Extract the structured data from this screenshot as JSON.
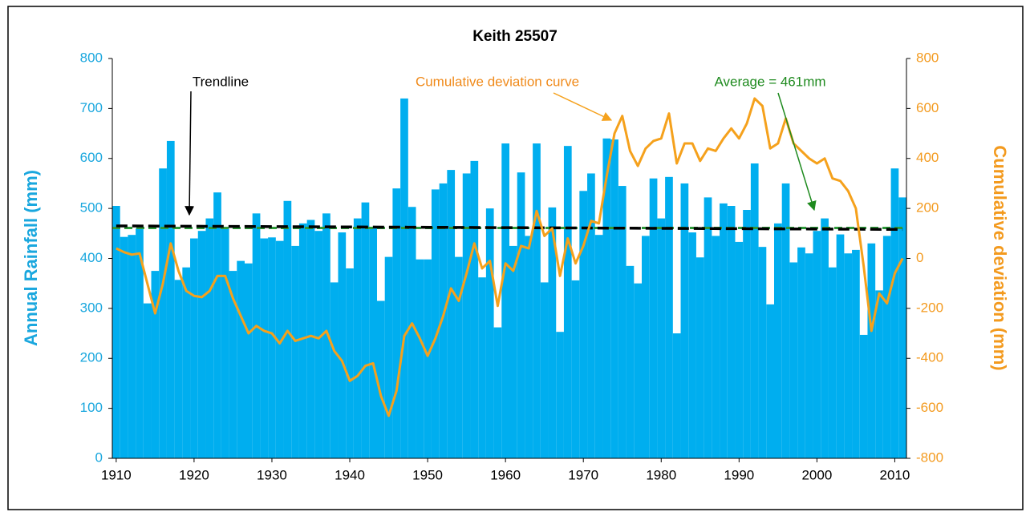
{
  "chart_data": {
    "type": "bar",
    "title": "Keith 25507",
    "ylabel": "Annual Rainfall (mm)",
    "y2label": "Cumulative deviation (mm)",
    "x": [
      1910,
      1911,
      1912,
      1913,
      1914,
      1915,
      1916,
      1917,
      1918,
      1919,
      1920,
      1921,
      1922,
      1923,
      1924,
      1925,
      1926,
      1927,
      1928,
      1929,
      1930,
      1931,
      1932,
      1933,
      1934,
      1935,
      1936,
      1937,
      1938,
      1939,
      1940,
      1941,
      1942,
      1943,
      1944,
      1945,
      1946,
      1947,
      1948,
      1949,
      1950,
      1951,
      1952,
      1953,
      1954,
      1955,
      1956,
      1957,
      1958,
      1959,
      1960,
      1961,
      1962,
      1963,
      1964,
      1965,
      1966,
      1967,
      1968,
      1969,
      1970,
      1971,
      1972,
      1973,
      1974,
      1975,
      1976,
      1977,
      1978,
      1979,
      1980,
      1981,
      1982,
      1983,
      1984,
      1985,
      1986,
      1987,
      1988,
      1989,
      1990,
      1991,
      1992,
      1993,
      1994,
      1995,
      1996,
      1997,
      1998,
      1999,
      2000,
      2001,
      2002,
      2003,
      2004,
      2005,
      2006,
      2007,
      2008,
      2009,
      2010,
      2011
    ],
    "xlim": [
      1909.5,
      2011.5
    ],
    "xticks": [
      1910,
      1920,
      1930,
      1940,
      1950,
      1960,
      1970,
      1980,
      1990,
      2000,
      2010
    ],
    "ylim": [
      0,
      800
    ],
    "yticks": [
      0,
      100,
      200,
      300,
      400,
      500,
      600,
      700,
      800
    ],
    "y2lim": [
      -800,
      800
    ],
    "y2ticks": [
      -800,
      -600,
      -400,
      -200,
      0,
      200,
      400,
      600,
      800
    ],
    "series": [
      {
        "type": "bar",
        "color": "#00AEEF",
        "values": [
          505,
          443,
          447,
          460,
          310,
          375,
          580,
          635,
          357,
          382,
          440,
          455,
          480,
          532,
          460,
          375,
          395,
          390,
          490,
          440,
          442,
          435,
          515,
          425,
          470,
          477,
          455,
          490,
          352,
          452,
          380,
          480,
          512,
          460,
          315,
          403,
          540,
          720,
          503,
          398,
          398,
          538,
          550,
          577,
          403,
          570,
          595,
          362,
          500,
          262,
          630,
          425,
          572,
          445,
          630,
          352,
          502,
          253,
          625,
          356,
          535,
          570,
          447,
          640,
          638,
          545,
          385,
          350,
          445,
          560,
          480,
          563,
          250,
          550,
          452,
          402,
          522,
          445,
          510,
          505,
          433,
          497,
          590,
          423,
          308,
          470,
          550,
          392,
          422,
          410,
          455,
          480,
          382,
          448,
          410,
          417,
          247,
          430,
          336,
          445,
          580,
          522
        ]
      },
      {
        "type": "line",
        "axis": "y2",
        "name": "Cumulative deviation curve",
        "color": "#F5A11C",
        "values": [
          40,
          25,
          15,
          20,
          -100,
          -220,
          -100,
          60,
          -50,
          -130,
          -150,
          -155,
          -130,
          -70,
          -70,
          -160,
          -230,
          -300,
          -270,
          -290,
          -300,
          -340,
          -290,
          -330,
          -320,
          -310,
          -320,
          -290,
          -370,
          -410,
          -490,
          -470,
          -430,
          -420,
          -550,
          -630,
          -530,
          -310,
          -260,
          -320,
          -390,
          -320,
          -230,
          -120,
          -170,
          -60,
          60,
          -40,
          -10,
          -190,
          -20,
          -50,
          50,
          40,
          190,
          90,
          120,
          -70,
          80,
          -20,
          50,
          150,
          140,
          330,
          500,
          570,
          430,
          370,
          440,
          470,
          480,
          580,
          380,
          460,
          460,
          390,
          440,
          430,
          480,
          520,
          480,
          540,
          640,
          610,
          440,
          460,
          560,
          460,
          430,
          400,
          380,
          400,
          320,
          310,
          270,
          200,
          -30,
          -290,
          -140,
          -180,
          -60,
          0
        ]
      },
      {
        "type": "line",
        "name": "Trendline",
        "color": "#000000",
        "x": [
          1910,
          2011
        ],
        "values": [
          465,
          458
        ]
      },
      {
        "type": "hline",
        "name": "Average = 461mm",
        "color": "#2E9A3A",
        "value": 461
      }
    ]
  }
}
